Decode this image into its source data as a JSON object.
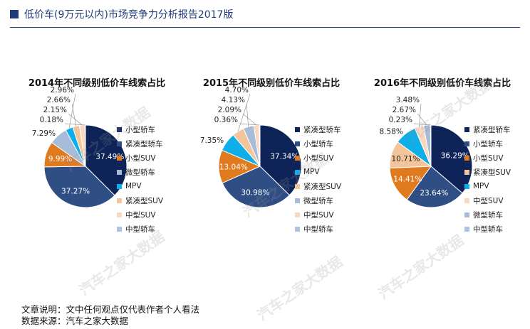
{
  "header": {
    "title": "低价车(9万元以内)市场竞争力分析报告2017版"
  },
  "footer": {
    "line1": "文章说明：文中任何观点仅代表作者个人看法",
    "line2": "数据来源：汽车之家大数据"
  },
  "watermark": "汽车之家大数据",
  "chart_data": [
    {
      "type": "pie",
      "title": "2014年不同级别低价车线索占比",
      "categories": [
        "小型轿车",
        "紧凑型轿车",
        "小型SUV",
        "微型轿车",
        "MPV",
        "紧凑型SUV",
        "中型SUV",
        "中型轿车"
      ],
      "values": [
        37.49,
        37.27,
        9.99,
        7.29,
        2.96,
        2.66,
        2.15,
        0.18
      ],
      "labels": [
        "37.49%",
        "37.27%",
        "9.99%",
        "7.29%",
        "2.96%",
        "2.66%",
        "2.15%",
        "0.18%"
      ],
      "colors": [
        "#0e2358",
        "#2f4f84",
        "#e07a1f",
        "#a6bcd8",
        "#10aee8",
        "#f4c49b",
        "#f9d8c0",
        "#aec3de"
      ],
      "legend": "right"
    },
    {
      "type": "pie",
      "title": "2015年不同级别低价车线索占比",
      "categories": [
        "紧凑型轿车",
        "小型轿车",
        "小型SUV",
        "MPV",
        "紧凑型SUV",
        "微型轿车",
        "中型SUV",
        "中型轿车"
      ],
      "values": [
        37.34,
        30.98,
        13.04,
        7.35,
        4.7,
        4.13,
        2.09,
        0.36
      ],
      "labels": [
        "37.34%",
        "30.98%",
        "13.04%",
        "7.35%",
        "4.70%",
        "4.13%",
        "2.09%",
        "0.36%"
      ],
      "colors": [
        "#0e2358",
        "#2f4f84",
        "#e07a1f",
        "#10aee8",
        "#f4c49b",
        "#a6bcd8",
        "#f9d8c0",
        "#aec3de"
      ],
      "legend": "right"
    },
    {
      "type": "pie",
      "title": "2016年不同级别低价车线索占比",
      "categories": [
        "紧凑型轿车",
        "小型轿车",
        "小型SUV",
        "紧凑型SUV",
        "MPV",
        "中型SUV",
        "微型轿车",
        "中型轿车"
      ],
      "values": [
        36.29,
        23.64,
        14.41,
        10.71,
        8.58,
        3.48,
        2.67,
        0.23
      ],
      "labels": [
        "36.29%",
        "23.64%",
        "14.41%",
        "10.71%",
        "8.58%",
        "3.48%",
        "2.67%",
        "0.23%"
      ],
      "colors": [
        "#0e2358",
        "#2f4f84",
        "#e07a1f",
        "#f4c49b",
        "#10aee8",
        "#f9d8c0",
        "#a6bcd8",
        "#aec3de"
      ],
      "legend": "right"
    }
  ]
}
